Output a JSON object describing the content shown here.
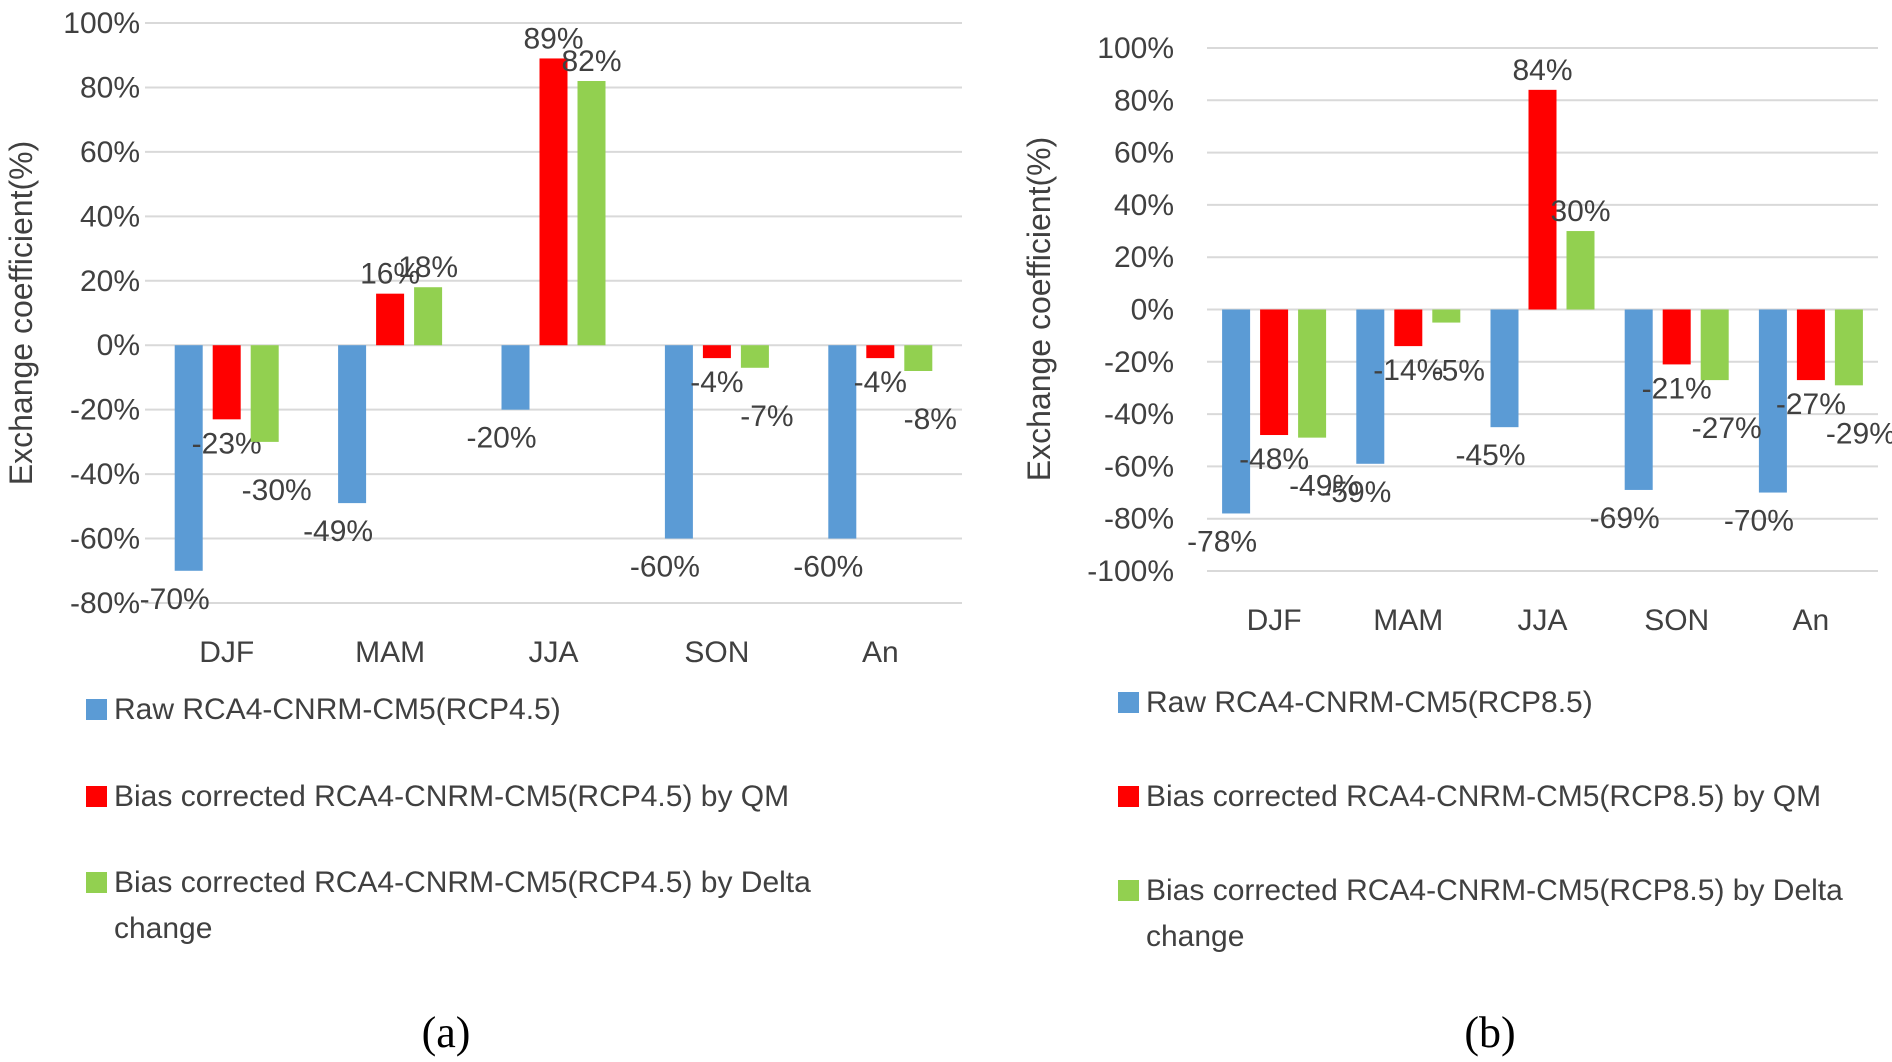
{
  "series_colors": {
    "raw": "#5b9bd5",
    "qm": "#ff0000",
    "delta": "#92d050"
  },
  "chart_data": [
    {
      "type": "bar",
      "panel": "a",
      "caption": "(a)",
      "ylabel": "Exchange coefficient(%)",
      "ylim": [
        -80,
        100
      ],
      "yticks": [
        "100%",
        "80%",
        "60%",
        "40%",
        "20%",
        "0%",
        "-20%",
        "-40%",
        "-60%",
        "-80%"
      ],
      "categories": [
        "DJF",
        "MAM",
        "JJA",
        "SON",
        "An"
      ],
      "grid": true,
      "legend_position": "bottom",
      "series": [
        {
          "name": "Raw RCA4-CNRM-CM5(RCP4.5)",
          "key": "raw",
          "values": [
            -70,
            -49,
            -20,
            -60,
            -60
          ],
          "labels": [
            "-70%",
            "-49%",
            "-20%",
            "-60%",
            "-60%"
          ]
        },
        {
          "name": "Bias corrected RCA4-CNRM-CM5(RCP4.5) by QM",
          "key": "qm",
          "values": [
            -23,
            16,
            89,
            -4,
            -4
          ],
          "labels": [
            "-23%",
            "16%",
            "89%",
            "-4%",
            "-4%"
          ]
        },
        {
          "name": "Bias corrected RCA4-CNRM-CM5(RCP4.5) by Delta change",
          "name_lines": [
            "Bias corrected RCA4-CNRM-CM5(RCP4.5) by Delta",
            "change"
          ],
          "key": "delta",
          "values": [
            -30,
            18,
            82,
            -7,
            -8
          ],
          "labels": [
            "-30%",
            "18%",
            "82%",
            "-7%",
            "-8%"
          ]
        }
      ]
    },
    {
      "type": "bar",
      "panel": "b",
      "caption": "(b)",
      "ylabel": "Exchange coefficient(%)",
      "ylim": [
        -100,
        100
      ],
      "yticks": [
        "100%",
        "80%",
        "60%",
        "40%",
        "20%",
        "0%",
        "-20%",
        "-40%",
        "-60%",
        "-80%",
        "-100%"
      ],
      "categories": [
        "DJF",
        "MAM",
        "JJA",
        "SON",
        "An"
      ],
      "grid": true,
      "legend_position": "bottom",
      "series": [
        {
          "name": "Raw RCA4-CNRM-CM5(RCP8.5)",
          "key": "raw",
          "values": [
            -78,
            -59,
            -45,
            -69,
            -70
          ],
          "labels": [
            "-78%",
            "-59%",
            "-45%",
            "-69%",
            "-70%"
          ]
        },
        {
          "name": "Bias corrected RCA4-CNRM-CM5(RCP8.5) by QM",
          "key": "qm",
          "values": [
            -48,
            -14,
            84,
            -21,
            -27
          ],
          "labels": [
            "-48%",
            "-14%",
            "84%",
            "-21%",
            "-27%"
          ]
        },
        {
          "name": "Bias corrected RCA4-CNRM-CM5(RCP8.5) by Delta change",
          "name_lines": [
            "Bias corrected RCA4-CNRM-CM5(RCP8.5) by Delta",
            "change"
          ],
          "key": "delta",
          "values": [
            -49,
            -5,
            30,
            -27,
            -29
          ],
          "labels": [
            "-49%",
            "-5%",
            "30%",
            "-27%",
            "-29%"
          ]
        }
      ]
    }
  ]
}
